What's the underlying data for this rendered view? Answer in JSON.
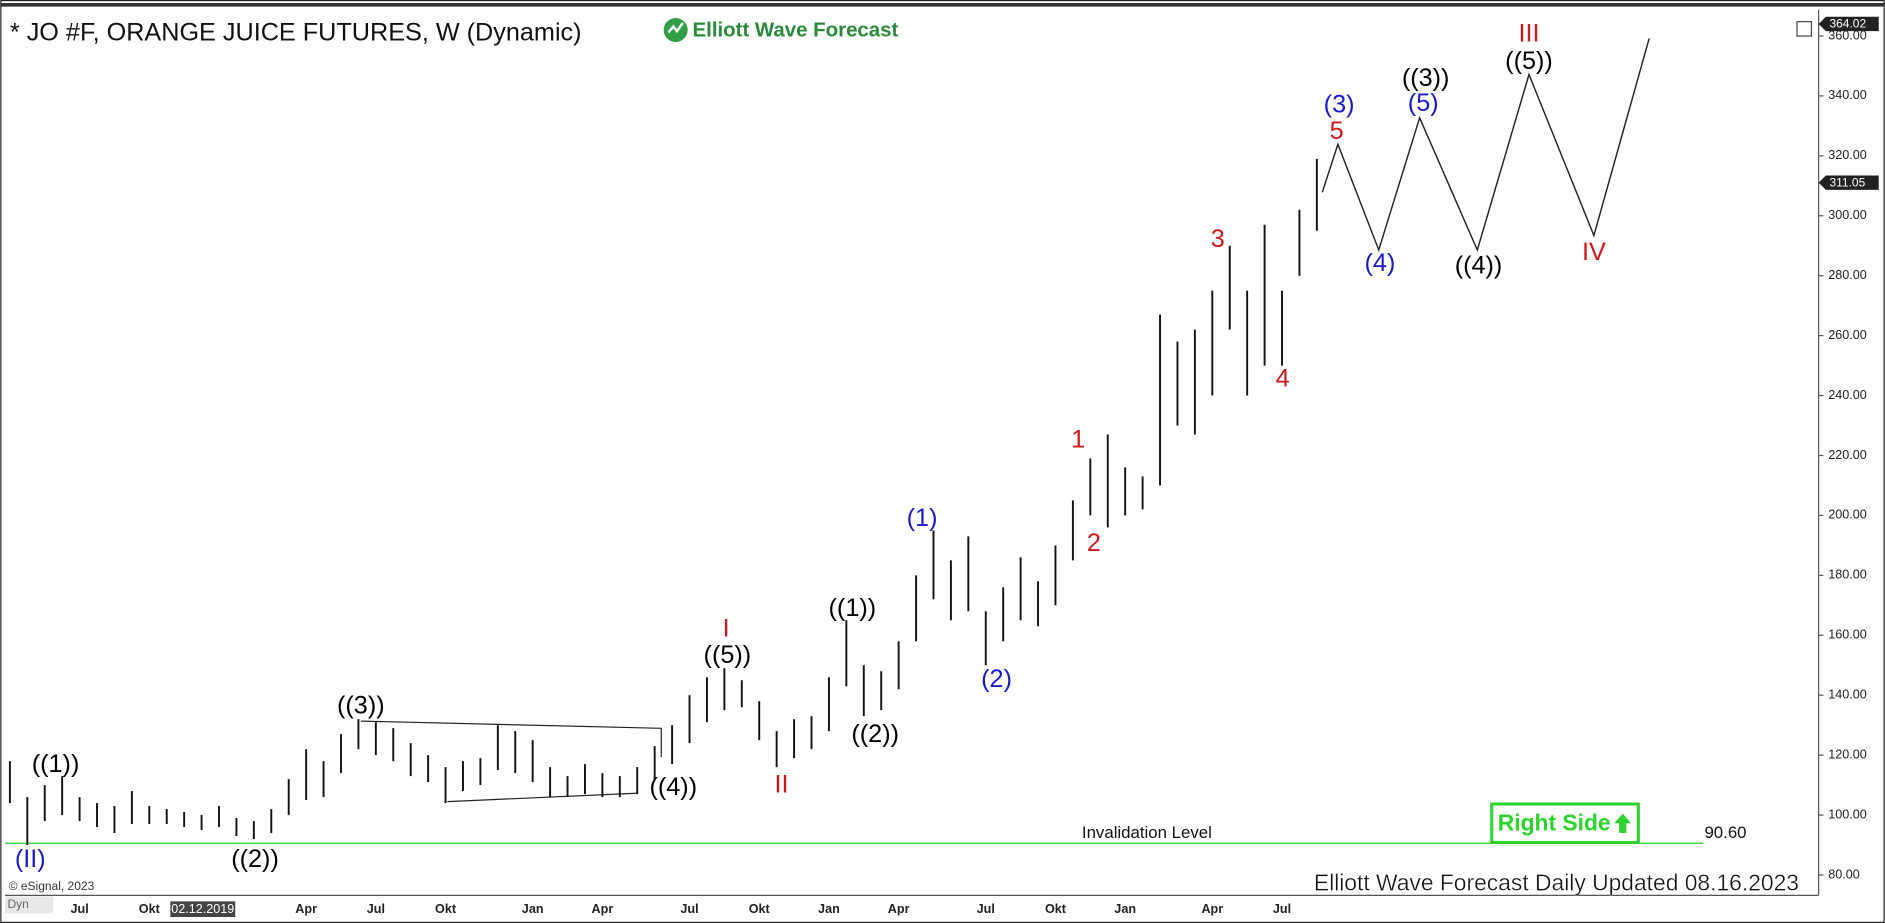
{
  "chart_data": {
    "type": "hilo",
    "title": "* JO #F, ORANGE JUICE FUTURES, W (Dynamic)",
    "logo": "Elliott Wave Forecast",
    "footer": "Elliott Wave Forecast Daily Updated 08.16.2023",
    "copyright": "© eSignal, 2023",
    "mode": "Dyn",
    "button": "Right Side",
    "categories": [
      null,
      null,
      null,
      null,
      "Jul",
      null,
      null,
      null,
      "Okt",
      null,
      null,
      "02.12.2019",
      null,
      null,
      null,
      null,
      null,
      "Apr",
      null,
      null,
      null,
      "Jul",
      null,
      null,
      null,
      "Okt",
      null,
      null,
      null,
      null,
      "Jan",
      null,
      null,
      null,
      "Apr",
      null,
      null,
      null,
      null,
      "Jul",
      null,
      null,
      null,
      "Okt",
      null,
      null,
      null,
      "Jan",
      null,
      null,
      null,
      "Apr",
      null,
      null,
      null,
      null,
      "Jul",
      null,
      null,
      null,
      "Okt",
      null,
      null,
      null,
      "Jan",
      null,
      null,
      null,
      null,
      "Apr",
      null,
      null,
      null,
      "Jul",
      null,
      null
    ],
    "series": [
      {
        "name": "JO #F",
        "color": "#111111",
        "low": [
          104,
          90,
          98,
          100,
          98,
          96,
          94,
          97,
          97,
          97,
          96,
          95,
          96,
          93,
          92,
          94,
          100,
          105,
          106,
          114,
          122,
          120,
          118,
          113,
          111,
          104,
          108,
          110,
          115,
          114,
          111,
          106,
          106,
          107,
          106,
          106,
          107,
          112,
          117,
          124,
          131,
          135,
          136,
          125,
          116,
          119,
          122,
          128,
          143,
          133,
          135,
          142,
          158,
          172,
          165,
          168,
          150,
          158,
          165,
          163,
          170,
          185,
          200,
          196,
          200,
          202,
          210,
          230,
          227,
          240,
          262,
          240,
          250,
          250,
          280,
          295
        ],
        "high": [
          118,
          106,
          110,
          113,
          106,
          104,
          103,
          108,
          103,
          102,
          101,
          100,
          103,
          99,
          98,
          102,
          112,
          122,
          118,
          127,
          132,
          131,
          129,
          124,
          120,
          116,
          118,
          119,
          130,
          128,
          125,
          116,
          113,
          117,
          114,
          113,
          116,
          123,
          130,
          140,
          146,
          149,
          145,
          138,
          128,
          132,
          133,
          146,
          165,
          150,
          148,
          158,
          180,
          195,
          185,
          193,
          168,
          176,
          186,
          178,
          190,
          205,
          219,
          227,
          216,
          213,
          267,
          258,
          262,
          275,
          290,
          275,
          297,
          275,
          302,
          319
        ]
      }
    ],
    "ylim": [
      73.2,
      368.8
    ],
    "yticks": [
      {
        "value": 80,
        "label": "80.00"
      },
      {
        "value": 100,
        "label": "100.00"
      },
      {
        "value": 120,
        "label": "120.00"
      },
      {
        "value": 140,
        "label": "140.00"
      },
      {
        "value": 160,
        "label": "160.00"
      },
      {
        "value": 180,
        "label": "180.00"
      },
      {
        "value": 200,
        "label": "200.00"
      },
      {
        "value": 220,
        "label": "220.00"
      },
      {
        "value": 240,
        "label": "240.00"
      },
      {
        "value": 260,
        "label": "260.00"
      },
      {
        "value": 280,
        "label": "280.00"
      },
      {
        "value": 300,
        "label": "300.00"
      },
      {
        "value": 320,
        "label": "320.00"
      },
      {
        "value": 340,
        "label": "340.00"
      },
      {
        "value": 360,
        "label": "360.00"
      }
    ],
    "grid": false,
    "last_price": 311.05,
    "high_marker": 364.02,
    "invalidation": {
      "text": "Invalidation Level",
      "value": 90.6,
      "label": "90.60",
      "color": "#2ecc2e"
    },
    "annotations": [
      {
        "text": "((1))",
        "color": "#000000"
      },
      {
        "text": "(II)",
        "color": "#1a1acc"
      },
      {
        "text": "((2))",
        "color": "#000000"
      },
      {
        "text": "((3))",
        "color": "#000000"
      },
      {
        "text": "((4))",
        "color": "#000000"
      },
      {
        "text": "((5))",
        "color": "#000000"
      },
      {
        "text": "I",
        "color": "#d01818"
      },
      {
        "text": "II",
        "color": "#d01818"
      },
      {
        "text": "((1))",
        "color": "#000000"
      },
      {
        "text": "((2))",
        "color": "#000000"
      },
      {
        "text": "(1)",
        "color": "#1a1acc"
      },
      {
        "text": "(2)",
        "color": "#1a1acc"
      },
      {
        "text": "1",
        "color": "#d01818"
      },
      {
        "text": "2",
        "color": "#d01818"
      },
      {
        "text": "3",
        "color": "#d01818"
      },
      {
        "text": "4",
        "color": "#d01818"
      },
      {
        "text": "5",
        "color": "#d01818"
      },
      {
        "text": "(3)",
        "color": "#1a1acc"
      },
      {
        "text": "(5)",
        "color": "#1a1acc"
      },
      {
        "text": "((3))",
        "color": "#000000"
      },
      {
        "text": "(4)",
        "color": "#1a1acc"
      },
      {
        "text": "((4))",
        "color": "#000000"
      },
      {
        "text": "III",
        "color": "#d01818"
      },
      {
        "text": "((5))",
        "color": "#000000"
      },
      {
        "text": "IV",
        "color": "#d01818"
      }
    ]
  }
}
